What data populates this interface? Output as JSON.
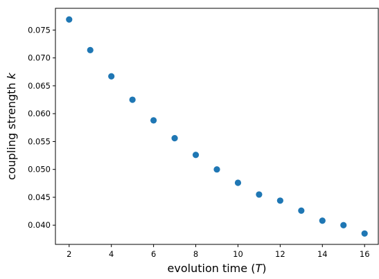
{
  "chart_data": {
    "type": "scatter",
    "title": "",
    "xlabel": "evolution time (",
    "xlabel_symbol": "T",
    "xlabel_suffix": ")",
    "ylabel": "coupling strength ",
    "ylabel_symbol": "k",
    "xlim": [
      1.35,
      16.65
    ],
    "ylim": [
      0.03655,
      0.0789
    ],
    "xticks": [
      "2",
      "4",
      "6",
      "8",
      "10",
      "12",
      "14",
      "16"
    ],
    "xtick_values": [
      2,
      4,
      6,
      8,
      10,
      12,
      14,
      16
    ],
    "yticks": [
      "0.040",
      "0.045",
      "0.050",
      "0.055",
      "0.060",
      "0.065",
      "0.070",
      "0.075"
    ],
    "ytick_values": [
      0.04,
      0.045,
      0.05,
      0.055,
      0.06,
      0.065,
      0.07,
      0.075
    ],
    "grid": false,
    "marker_color": "#1f77b4",
    "points": [
      {
        "x": 2,
        "y": 0.0769
      },
      {
        "x": 3,
        "y": 0.0714
      },
      {
        "x": 4,
        "y": 0.0667
      },
      {
        "x": 5,
        "y": 0.0625
      },
      {
        "x": 6,
        "y": 0.0588
      },
      {
        "x": 7,
        "y": 0.0556
      },
      {
        "x": 8,
        "y": 0.0526
      },
      {
        "x": 9,
        "y": 0.05
      },
      {
        "x": 10,
        "y": 0.0476
      },
      {
        "x": 11,
        "y": 0.0455
      },
      {
        "x": 12,
        "y": 0.0444
      },
      {
        "x": 13,
        "y": 0.0426
      },
      {
        "x": 14,
        "y": 0.0408
      },
      {
        "x": 15,
        "y": 0.04
      },
      {
        "x": 16,
        "y": 0.0385
      }
    ]
  }
}
